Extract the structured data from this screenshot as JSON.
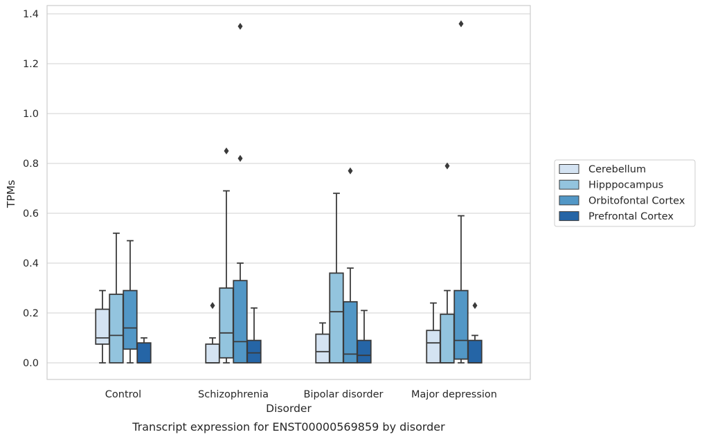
{
  "chart_data": {
    "type": "boxplot",
    "xlabel": "Disorder",
    "ylabel": "TPMs",
    "caption": "Transcript expression for ENST00000569859 by disorder",
    "categories": [
      "Control",
      "Schizophrenia",
      "Bipolar disorder",
      "Major depression"
    ],
    "ylim": [
      -0.065,
      1.43
    ],
    "yticks": [
      0.0,
      0.2,
      0.4,
      0.6,
      0.8,
      1.0,
      1.2,
      1.4
    ],
    "ytick_labels": [
      "0.0",
      "0.2",
      "0.4",
      "0.6",
      "0.8",
      "1.0",
      "1.2",
      "1.4"
    ],
    "grid": "horizontal",
    "legend_position": "right",
    "legend": [
      "Cerebellum",
      "Hipppocampus",
      "Orbitofontal Cortex",
      "Prefrontal Cortex"
    ],
    "series_colors": [
      "#d4e3f2",
      "#93c4de",
      "#5297c6",
      "#2565a6"
    ],
    "series": [
      {
        "name": "Cerebellum",
        "boxes": [
          {
            "q1": 0.075,
            "median": 0.1,
            "q3": 0.215,
            "whisker_low": 0.0,
            "whisker_high": 0.29,
            "outliers": []
          },
          {
            "q1": 0.0,
            "median": 0.0,
            "q3": 0.075,
            "whisker_low": 0.0,
            "whisker_high": 0.1,
            "outliers": [
              0.23
            ]
          },
          {
            "q1": 0.0,
            "median": 0.045,
            "q3": 0.115,
            "whisker_low": 0.0,
            "whisker_high": 0.16,
            "outliers": []
          },
          {
            "q1": 0.0,
            "median": 0.08,
            "q3": 0.13,
            "whisker_low": 0.0,
            "whisker_high": 0.24,
            "outliers": []
          }
        ]
      },
      {
        "name": "Hipppocampus",
        "boxes": [
          {
            "q1": 0.0,
            "median": 0.11,
            "q3": 0.275,
            "whisker_low": 0.0,
            "whisker_high": 0.52,
            "outliers": []
          },
          {
            "q1": 0.02,
            "median": 0.12,
            "q3": 0.3,
            "whisker_low": 0.0,
            "whisker_high": 0.69,
            "outliers": [
              0.85
            ]
          },
          {
            "q1": 0.0,
            "median": 0.205,
            "q3": 0.36,
            "whisker_low": 0.0,
            "whisker_high": 0.68,
            "outliers": []
          },
          {
            "q1": 0.0,
            "median": 0.0,
            "q3": 0.195,
            "whisker_low": 0.0,
            "whisker_high": 0.29,
            "outliers": [
              0.79
            ]
          }
        ]
      },
      {
        "name": "Orbitofontal Cortex",
        "boxes": [
          {
            "q1": 0.055,
            "median": 0.14,
            "q3": 0.29,
            "whisker_low": 0.0,
            "whisker_high": 0.49,
            "outliers": []
          },
          {
            "q1": 0.0,
            "median": 0.085,
            "q3": 0.33,
            "whisker_low": 0.0,
            "whisker_high": 0.4,
            "outliers": [
              0.82,
              1.35
            ]
          },
          {
            "q1": 0.0,
            "median": 0.035,
            "q3": 0.245,
            "whisker_low": 0.0,
            "whisker_high": 0.38,
            "outliers": [
              0.77
            ]
          },
          {
            "q1": 0.015,
            "median": 0.09,
            "q3": 0.29,
            "whisker_low": 0.0,
            "whisker_high": 0.59,
            "outliers": [
              1.36
            ]
          }
        ]
      },
      {
        "name": "Prefrontal Cortex",
        "boxes": [
          {
            "q1": 0.0,
            "median": 0.0,
            "q3": 0.08,
            "whisker_low": 0.0,
            "whisker_high": 0.1,
            "outliers": []
          },
          {
            "q1": 0.0,
            "median": 0.04,
            "q3": 0.09,
            "whisker_low": 0.0,
            "whisker_high": 0.22,
            "outliers": []
          },
          {
            "q1": 0.0,
            "median": 0.03,
            "q3": 0.09,
            "whisker_low": 0.0,
            "whisker_high": 0.21,
            "outliers": []
          },
          {
            "q1": 0.0,
            "median": 0.0,
            "q3": 0.09,
            "whisker_low": 0.0,
            "whisker_high": 0.11,
            "outliers": [
              0.23
            ]
          }
        ]
      }
    ]
  }
}
